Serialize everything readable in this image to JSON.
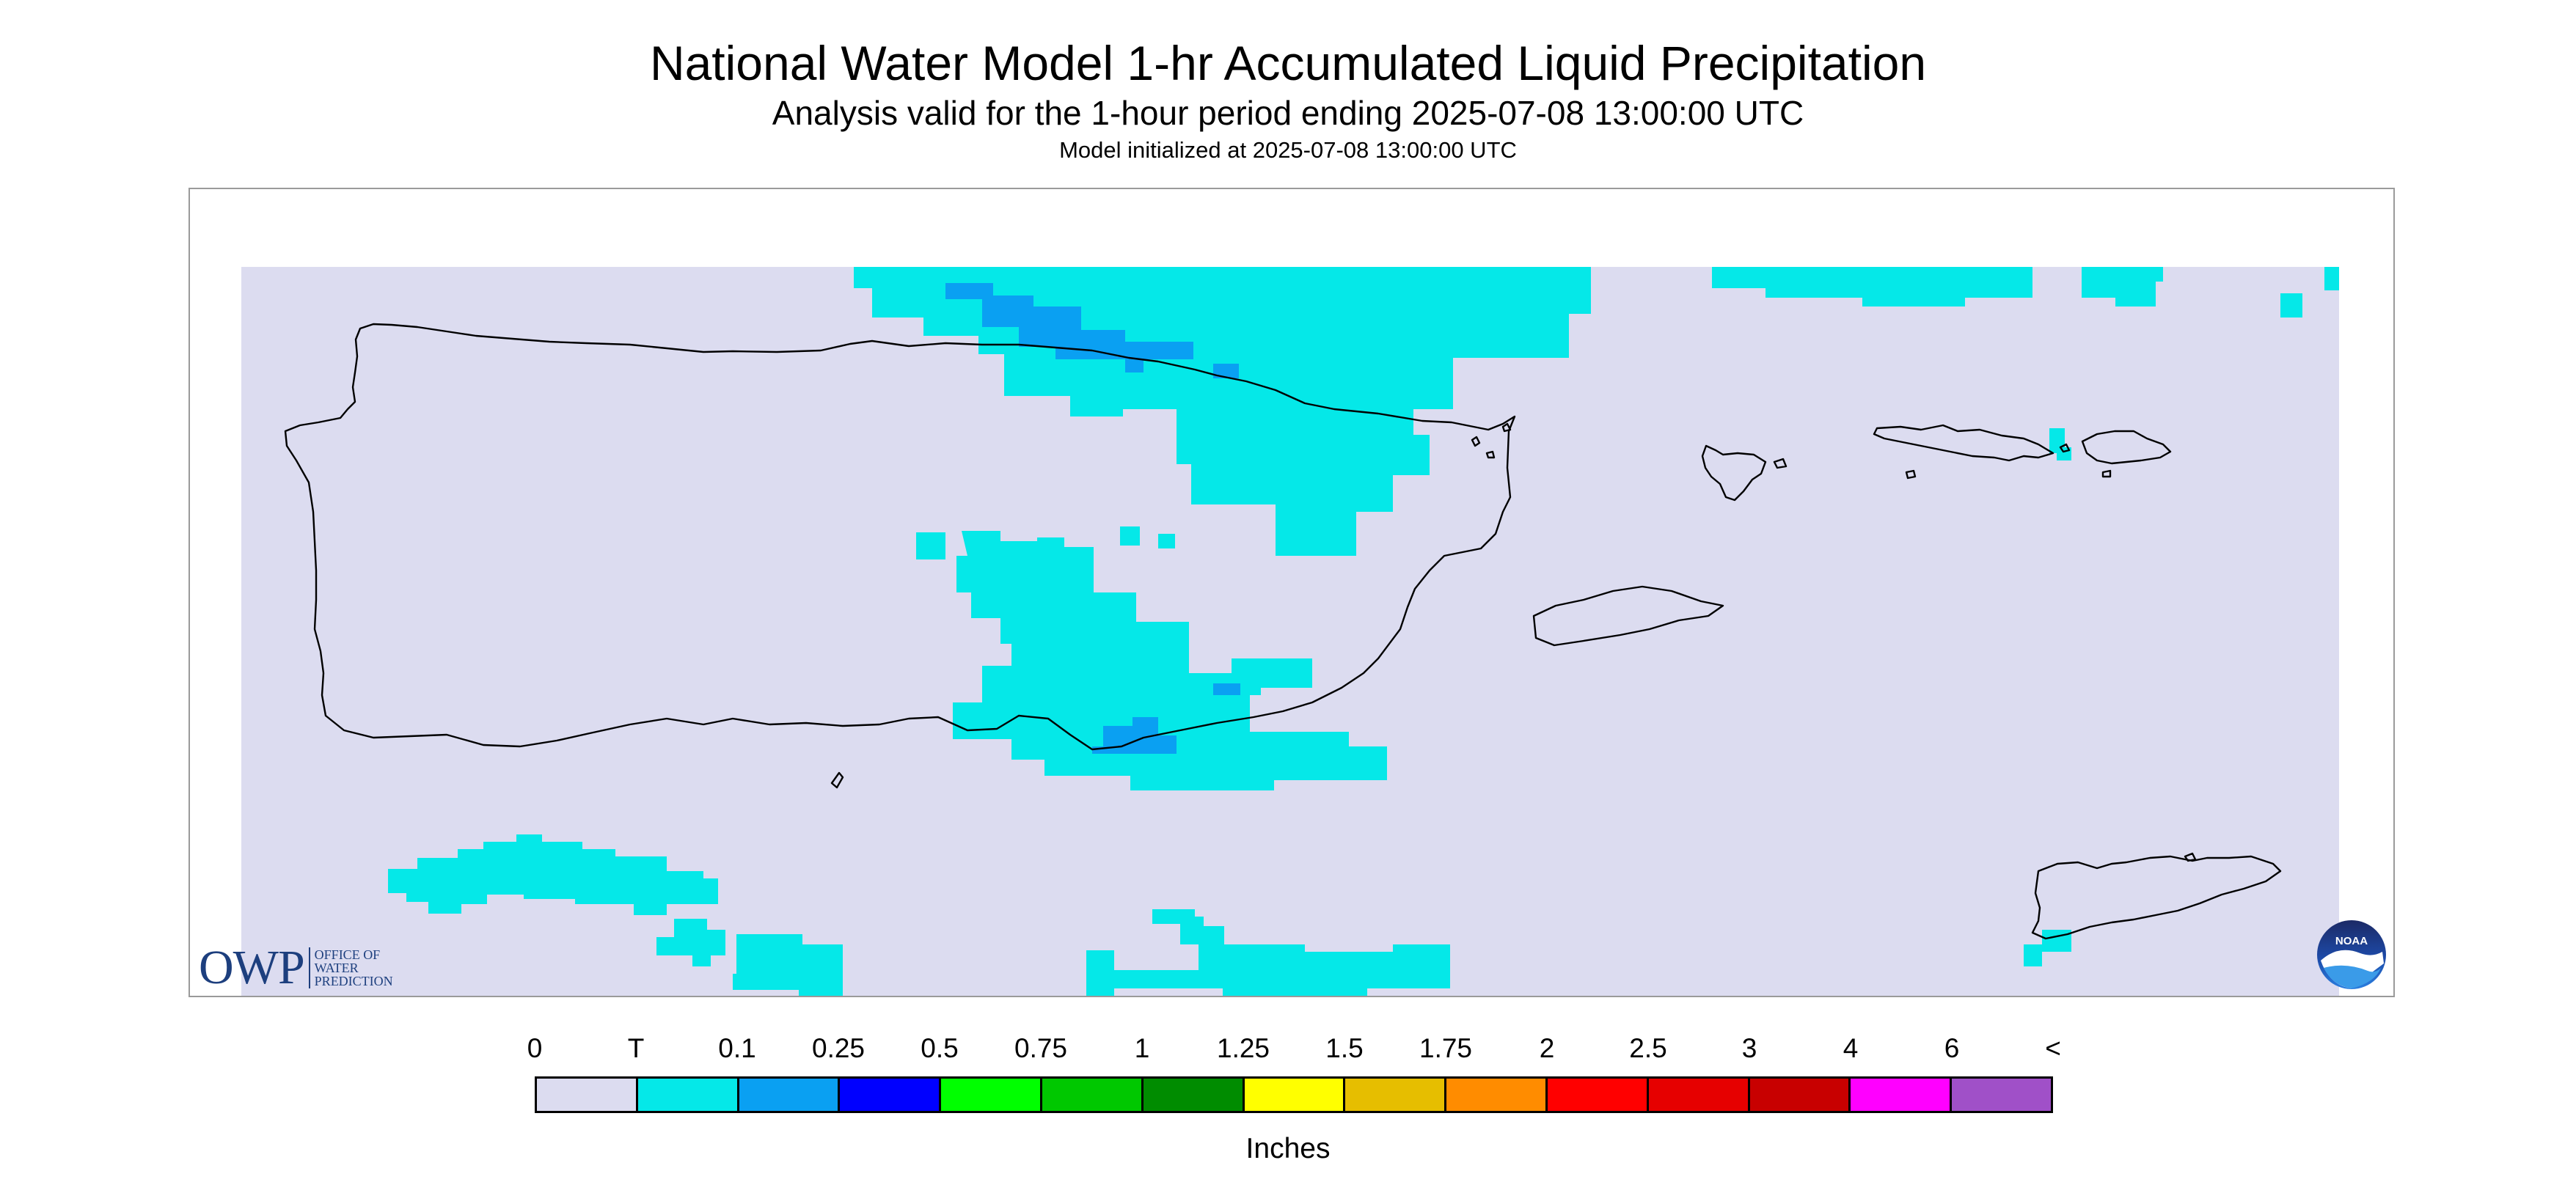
{
  "header": {
    "title": "National Water Model 1-hr Accumulated Liquid Precipitation",
    "subtitle": "Analysis valid for the 1-hour period ending 2025-07-08 13:00:00 UTC",
    "init": "Model initialized at 2025-07-08 13:00:00 UTC"
  },
  "map": {
    "background_color": "#dcdcf0",
    "precip_color_t": "#05e8e8",
    "precip_color_01": "#0aa0f2",
    "outline_color": "#000000"
  },
  "logos": {
    "owp_letters": "OWP",
    "owp_lines": [
      "OFFICE OF",
      "WATER",
      "PREDICTION"
    ],
    "noaa_text": "NOAA"
  },
  "legend": {
    "labels": [
      "0",
      "T",
      "0.1",
      "0.25",
      "0.5",
      "0.75",
      "1",
      "1.25",
      "1.5",
      "1.75",
      "2",
      "2.5",
      "3",
      "4",
      "6",
      "<"
    ],
    "colors": [
      "#dcdcf0",
      "#05e8e8",
      "#0aa0f2",
      "#0000ff",
      "#00ff00",
      "#00c800",
      "#008c00",
      "#ffff00",
      "#e6be00",
      "#ff8c00",
      "#ff0000",
      "#e60000",
      "#c80000",
      "#ff00ff",
      "#a050c8"
    ],
    "units": "Inches"
  }
}
